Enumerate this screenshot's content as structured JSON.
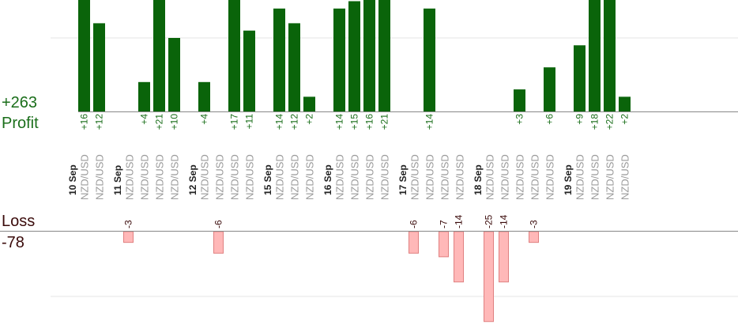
{
  "summary": {
    "profit_total": "+263",
    "profit_label": "Profit",
    "loss_label": "Loss",
    "loss_total": "-78"
  },
  "colors": {
    "profit_bar": "#0a640a",
    "profit_text": "#1a6e1a",
    "loss_bar": "#ffb8b8",
    "loss_bar_border": "#e08080",
    "loss_text": "#3a0a0a",
    "axis": "#888888",
    "grid": "#e6e6e6",
    "pair_text": "#999999",
    "date_text": "#222222"
  },
  "chart_data": {
    "type": "bar",
    "title": "",
    "xlabel": "",
    "ylabel": "",
    "grid": true,
    "profit_ylim": [
      0,
      15
    ],
    "loss_ylim": [
      -25,
      0
    ],
    "categories": [
      {
        "date": "10 Sep",
        "trades": [
          {
            "pair": "NZD/USD",
            "value": 16
          },
          {
            "pair": "NZD/USD",
            "value": 12
          }
        ]
      },
      {
        "date": "11 Sep",
        "trades": [
          {
            "pair": "NZD/USD",
            "value": -3
          },
          {
            "pair": "NZD/USD",
            "value": 4
          },
          {
            "pair": "NZD/USD",
            "value": 21
          },
          {
            "pair": "NZD/USD",
            "value": 10
          }
        ]
      },
      {
        "date": "12 Sep",
        "trades": [
          {
            "pair": "NZD/USD",
            "value": 4
          },
          {
            "pair": "NZD/USD",
            "value": -6
          },
          {
            "pair": "NZD/USD",
            "value": 17
          },
          {
            "pair": "NZD/USD",
            "value": 11
          }
        ]
      },
      {
        "date": "15 Sep",
        "trades": [
          {
            "pair": "NZD/USD",
            "value": 14
          },
          {
            "pair": "NZD/USD",
            "value": 12
          },
          {
            "pair": "NZD/USD",
            "value": 2
          }
        ]
      },
      {
        "date": "16 Sep",
        "trades": [
          {
            "pair": "NZD/USD",
            "value": 14
          },
          {
            "pair": "NZD/USD",
            "value": 15
          },
          {
            "pair": "NZD/USD",
            "value": 16
          },
          {
            "pair": "NZD/USD",
            "value": 21
          }
        ]
      },
      {
        "date": "17 Sep",
        "trades": [
          {
            "pair": "NZD/USD",
            "value": -6
          },
          {
            "pair": "NZD/USD",
            "value": 14
          },
          {
            "pair": "NZD/USD",
            "value": -7
          },
          {
            "pair": "NZD/USD",
            "value": -14
          }
        ]
      },
      {
        "date": "18 Sep",
        "trades": [
          {
            "pair": "NZD/USD",
            "value": -25
          },
          {
            "pair": "NZD/USD",
            "value": -14
          },
          {
            "pair": "NZD/USD",
            "value": 3
          },
          {
            "pair": "NZD/USD",
            "value": -3
          },
          {
            "pair": "NZD/USD",
            "value": 6
          }
        ]
      },
      {
        "date": "19 Sep",
        "trades": [
          {
            "pair": "NZD/USD",
            "value": 9
          },
          {
            "pair": "NZD/USD",
            "value": 18
          },
          {
            "pair": "NZD/USD",
            "value": 22
          },
          {
            "pair": "NZD/USD",
            "value": 2
          }
        ]
      }
    ]
  }
}
